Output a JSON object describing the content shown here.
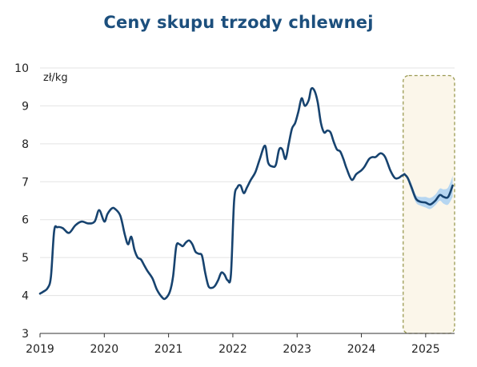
{
  "chart_data": {
    "type": "line",
    "title": "Ceny skupu trzody chlewnej",
    "unit_label": "zł/kg",
    "xlabel": "",
    "ylabel": "",
    "xlim": [
      2019,
      2025.45
    ],
    "ylim": [
      3,
      10
    ],
    "y_ticks": [
      3,
      4,
      5,
      6,
      7,
      8,
      9,
      10
    ],
    "x_ticks": [
      2019,
      2020,
      2021,
      2022,
      2023,
      2024,
      2025
    ],
    "grid": true,
    "colors": {
      "line": "#17436f",
      "band": "#a9d0f2",
      "forecast_box_fill": "#fbf6ea",
      "forecast_box_stroke": "#9a9a52",
      "grid": "#e3e3e3"
    },
    "series": [
      {
        "x": [
          2019.0,
          2019.05,
          2019.12,
          2019.17,
          2019.22,
          2019.27,
          2019.35,
          2019.45,
          2019.55,
          2019.65,
          2019.75,
          2019.85,
          2019.92,
          2020.0,
          2020.05,
          2020.12,
          2020.17,
          2020.25,
          2020.32,
          2020.37,
          2020.42,
          2020.47,
          2020.52,
          2020.57,
          2020.62,
          2020.67,
          2020.75,
          2020.82,
          2020.9,
          2020.95,
          2021.02,
          2021.07,
          2021.12,
          2021.17,
          2021.22,
          2021.27,
          2021.32,
          2021.37,
          2021.42,
          2021.47,
          2021.52,
          2021.57,
          2021.62,
          2021.67,
          2021.72,
          2021.77,
          2021.82,
          2021.87,
          2021.92,
          2021.97,
          2022.02,
          2022.07,
          2022.12,
          2022.17,
          2022.22,
          2022.28,
          2022.35,
          2022.42,
          2022.5,
          2022.55,
          2022.62,
          2022.67,
          2022.72,
          2022.77,
          2022.82,
          2022.87,
          2022.92,
          2022.97,
          2023.02,
          2023.07,
          2023.12,
          2023.18,
          2023.22,
          2023.27,
          2023.32,
          2023.37,
          2023.42,
          2023.47,
          2023.52,
          2023.57,
          2023.62,
          2023.67,
          2023.72,
          2023.77,
          2023.85,
          2023.92,
          2024.0,
          2024.05,
          2024.12,
          2024.17,
          2024.22,
          2024.3,
          2024.37,
          2024.45,
          2024.52,
          2024.58,
          2024.62,
          2024.67
        ],
        "values": [
          4.05,
          4.1,
          4.2,
          4.5,
          5.7,
          5.8,
          5.78,
          5.65,
          5.85,
          5.95,
          5.9,
          5.95,
          6.25,
          5.95,
          6.15,
          6.3,
          6.28,
          6.1,
          5.6,
          5.35,
          5.55,
          5.2,
          5.0,
          4.95,
          4.8,
          4.65,
          4.45,
          4.15,
          3.95,
          3.92,
          4.1,
          4.5,
          5.3,
          5.35,
          5.3,
          5.4,
          5.45,
          5.35,
          5.15,
          5.1,
          5.05,
          4.6,
          4.25,
          4.2,
          4.25,
          4.4,
          4.6,
          4.55,
          4.4,
          4.55,
          6.5,
          6.85,
          6.9,
          6.7,
          6.85,
          7.05,
          7.25,
          7.6,
          7.95,
          7.5,
          7.4,
          7.45,
          7.85,
          7.85,
          7.6,
          8.0,
          8.4,
          8.55,
          8.85,
          9.2,
          9.0,
          9.15,
          9.45,
          9.4,
          9.1,
          8.55,
          8.3,
          8.35,
          8.3,
          8.05,
          7.85,
          7.8,
          7.6,
          7.35,
          7.05,
          7.2,
          7.3,
          7.4,
          7.6,
          7.65,
          7.65,
          7.75,
          7.65,
          7.3,
          7.1,
          7.1,
          7.15,
          7.2
        ]
      },
      {
        "x": [
          2024.67,
          2024.72,
          2024.78,
          2024.85,
          2024.92,
          2025.0,
          2025.07,
          2025.15,
          2025.22,
          2025.28,
          2025.35,
          2025.42
        ],
        "values": [
          7.2,
          7.1,
          6.85,
          6.55,
          6.47,
          6.45,
          6.4,
          6.5,
          6.65,
          6.6,
          6.6,
          6.9
        ],
        "lower": [
          7.2,
          7.05,
          6.75,
          6.45,
          6.37,
          6.32,
          6.28,
          6.38,
          6.5,
          6.42,
          6.4,
          6.6
        ],
        "upper": [
          7.2,
          7.15,
          6.95,
          6.65,
          6.6,
          6.6,
          6.57,
          6.66,
          6.82,
          6.8,
          6.85,
          7.15
        ]
      }
    ],
    "forecast_region": {
      "x_start": 2024.65,
      "x_end": 2025.45,
      "y_start": 3,
      "y_end": 9.8
    }
  }
}
